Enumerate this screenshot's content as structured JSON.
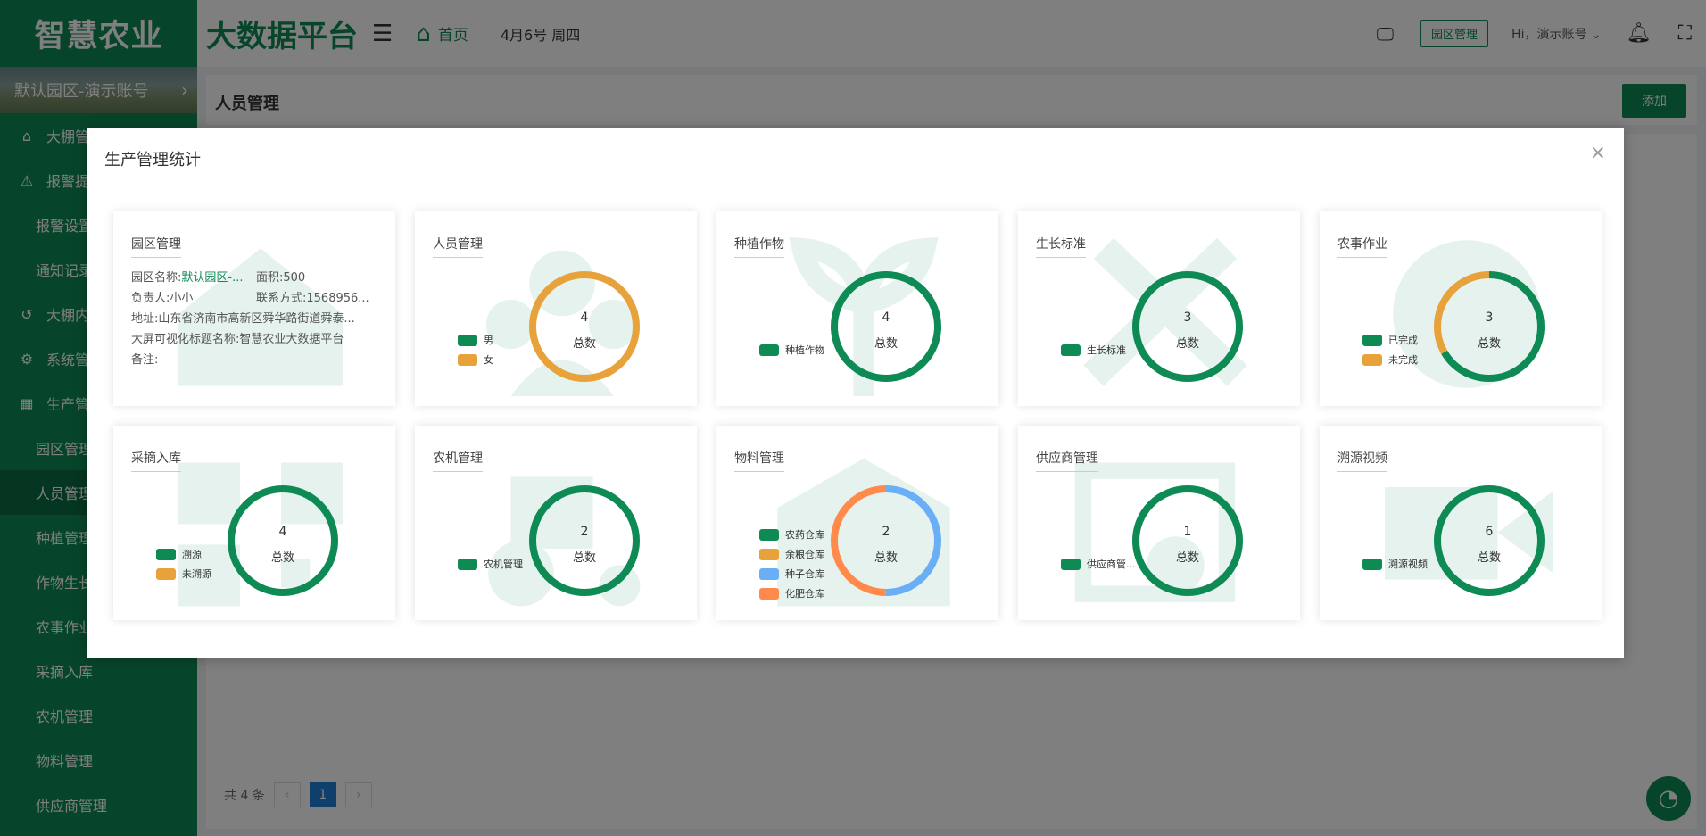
{
  "app": {
    "brand": "智慧农业",
    "platform": "大数据平台"
  },
  "header": {
    "home_label": "首页",
    "date": "4月6号 周四",
    "park_mgmt_label": "园区管理",
    "user_greeting": "Hi，演示账号"
  },
  "sidebar": {
    "park": "默认园区-演示账号",
    "items": [
      {
        "label": "大棚管理",
        "icon": "home-icon"
      },
      {
        "label": "报警提醒",
        "icon": "warning-icon"
      },
      {
        "label": "报警设置",
        "sub": true
      },
      {
        "label": "通知记录",
        "sub": true
      },
      {
        "label": "大棚内部",
        "icon": "history-icon"
      },
      {
        "label": "系统管理",
        "icon": "gear-icon"
      },
      {
        "label": "生产管理",
        "icon": "grid-icon"
      },
      {
        "label": "园区管理",
        "sub": true
      },
      {
        "label": "人员管理",
        "sub": true,
        "active": true
      },
      {
        "label": "种植管理",
        "sub": true
      },
      {
        "label": "作物生长",
        "sub": true
      },
      {
        "label": "农事作业",
        "sub": true
      },
      {
        "label": "采摘入库",
        "sub": true
      },
      {
        "label": "农机管理",
        "sub": true
      },
      {
        "label": "物料管理",
        "sub": true
      },
      {
        "label": "供应商管理",
        "sub": true
      }
    ]
  },
  "page": {
    "title": "人员管理",
    "add_label": "添加",
    "total_text": "共 4 条",
    "current_page": "1"
  },
  "modal": {
    "title": "生产管理统计",
    "center_label": "总数",
    "park_card": {
      "title": "园区管理",
      "name_label": "园区名称:",
      "name_value": "默认园区-...",
      "area": "面积:500",
      "owner": "负责人:小小",
      "contact": "联系方式:1568956...",
      "address": "地址:山东省济南市高新区舜华路街道舜泰...",
      "screen_title": "大屏可视化标题名称:智慧农业大数据平台",
      "remark": "备注:"
    },
    "cards": [
      {
        "title": "人员管理",
        "total": "4",
        "watermark": "people",
        "segments": [
          {
            "name": "男",
            "value": 0,
            "color": "#0e8a55"
          },
          {
            "name": "女",
            "value": 4,
            "color": "#e8a23b"
          }
        ]
      },
      {
        "title": "种植作物",
        "total": "4",
        "watermark": "plant",
        "segments": [
          {
            "name": "种植作物",
            "value": 4,
            "color": "#0e8a55"
          }
        ]
      },
      {
        "title": "生长标准",
        "total": "3",
        "watermark": "tools",
        "segments": [
          {
            "name": "生长标准",
            "value": 3,
            "color": "#0e8a55"
          }
        ]
      },
      {
        "title": "农事作业",
        "total": "3",
        "watermark": "farmer",
        "segments": [
          {
            "name": "已完成",
            "value": 2,
            "color": "#0e8a55"
          },
          {
            "name": "未完成",
            "value": 1,
            "color": "#e8a23b"
          }
        ]
      },
      {
        "title": "采摘入库",
        "total": "4",
        "watermark": "qr",
        "segments": [
          {
            "name": "溯源",
            "value": 4,
            "color": "#0e8a55"
          },
          {
            "name": "未溯源",
            "value": 0,
            "color": "#e8a23b"
          }
        ]
      },
      {
        "title": "农机管理",
        "total": "2",
        "watermark": "tractor",
        "segments": [
          {
            "name": "农机管理",
            "value": 2,
            "color": "#0e8a55"
          }
        ]
      },
      {
        "title": "物料管理",
        "total": "2",
        "watermark": "warehouse",
        "segments": [
          {
            "name": "农药仓库",
            "value": 0,
            "color": "#0e8a55"
          },
          {
            "name": "余粮仓库",
            "value": 0,
            "color": "#e8a23b"
          },
          {
            "name": "种子仓库",
            "value": 1,
            "color": "#6aaff5"
          },
          {
            "name": "化肥仓库",
            "value": 1,
            "color": "#ff8a4c"
          }
        ]
      },
      {
        "title": "供应商管理",
        "total": "1",
        "watermark": "supplier",
        "segments": [
          {
            "name": "供应商管...",
            "value": 1,
            "color": "#0e8a55"
          }
        ]
      },
      {
        "title": "溯源视频",
        "total": "6",
        "watermark": "video",
        "segments": [
          {
            "name": "溯源视频",
            "value": 6,
            "color": "#0e8a55"
          }
        ]
      }
    ]
  }
}
